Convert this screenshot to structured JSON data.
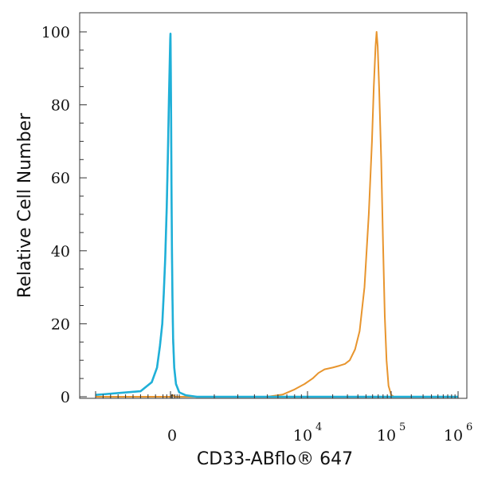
{
  "chart_data": {
    "type": "line",
    "title": "",
    "xlabel": "CD33-ABflo® 647",
    "ylabel": "Relative Cell Number",
    "x_scale": "biexponential",
    "xlim": [
      -1000,
      1000000
    ],
    "ylim": [
      0,
      100
    ],
    "y_ticks": [
      "0",
      "20",
      "40",
      "60",
      "80",
      "100"
    ],
    "x_ticks": [
      {
        "value": 0,
        "base": "0",
        "exp": ""
      },
      {
        "value": 10000,
        "base": "10",
        "exp": "4"
      },
      {
        "value": 100000,
        "base": "10",
        "exp": "5"
      },
      {
        "value": 1000000,
        "base": "10",
        "exp": "6"
      }
    ],
    "grid": false,
    "series": [
      {
        "color": "#e8394a",
        "points": [
          [
            -1000,
            0.5
          ],
          [
            -400,
            1.5
          ],
          [
            -250,
            4
          ],
          [
            -180,
            8
          ],
          [
            -140,
            14
          ],
          [
            -110,
            20
          ],
          [
            -90,
            28
          ],
          [
            -70,
            38
          ],
          [
            -50,
            52
          ],
          [
            -35,
            65
          ],
          [
            -20,
            80
          ],
          [
            -10,
            90
          ],
          [
            -3,
            96
          ],
          [
            0,
            98
          ],
          [
            5,
            96
          ],
          [
            15,
            88
          ],
          [
            28,
            75
          ],
          [
            45,
            58
          ],
          [
            65,
            40
          ],
          [
            90,
            26
          ],
          [
            120,
            15
          ],
          [
            170,
            8
          ],
          [
            250,
            3.5
          ],
          [
            400,
            1.2
          ],
          [
            700,
            0.4
          ],
          [
            1200,
            0
          ]
        ]
      },
      {
        "color": "#e8952e",
        "points": [
          [
            -1000,
            0
          ],
          [
            0,
            0
          ],
          [
            100,
            0.5
          ],
          [
            180,
            0
          ],
          [
            5000,
            0
          ],
          [
            6500,
            0.6
          ],
          [
            8000,
            2
          ],
          [
            9500,
            3.5
          ],
          [
            11500,
            5
          ],
          [
            13500,
            6.5
          ],
          [
            16000,
            7.5
          ],
          [
            20000,
            8
          ],
          [
            24000,
            8.5
          ],
          [
            28000,
            9
          ],
          [
            32000,
            10
          ],
          [
            37000,
            13
          ],
          [
            42000,
            18
          ],
          [
            48000,
            30
          ],
          [
            54000,
            50
          ],
          [
            59000,
            70
          ],
          [
            62000,
            85
          ],
          [
            65000,
            96
          ],
          [
            67000,
            100
          ],
          [
            69000,
            96
          ],
          [
            72000,
            84
          ],
          [
            76000,
            65
          ],
          [
            80000,
            42
          ],
          [
            84000,
            22
          ],
          [
            88000,
            10
          ],
          [
            93000,
            3
          ],
          [
            100000,
            0.5
          ],
          [
            110000,
            0
          ]
        ]
      },
      {
        "color": "#1fb0d8",
        "points": [
          [
            -1000,
            0.5
          ],
          [
            -400,
            1.5
          ],
          [
            -250,
            4
          ],
          [
            -180,
            8
          ],
          [
            -140,
            14
          ],
          [
            -110,
            20
          ],
          [
            -90,
            28
          ],
          [
            -70,
            38
          ],
          [
            -50,
            52
          ],
          [
            -35,
            66
          ],
          [
            -20,
            82
          ],
          [
            -10,
            92
          ],
          [
            -3,
            98
          ],
          [
            0,
            99.5
          ],
          [
            5,
            97
          ],
          [
            15,
            89
          ],
          [
            28,
            76
          ],
          [
            45,
            59
          ],
          [
            65,
            41
          ],
          [
            90,
            27
          ],
          [
            120,
            16
          ],
          [
            170,
            8
          ],
          [
            250,
            3.5
          ],
          [
            400,
            1.2
          ],
          [
            700,
            0.4
          ],
          [
            1200,
            0
          ],
          [
            1000000,
            0
          ]
        ]
      }
    ]
  }
}
